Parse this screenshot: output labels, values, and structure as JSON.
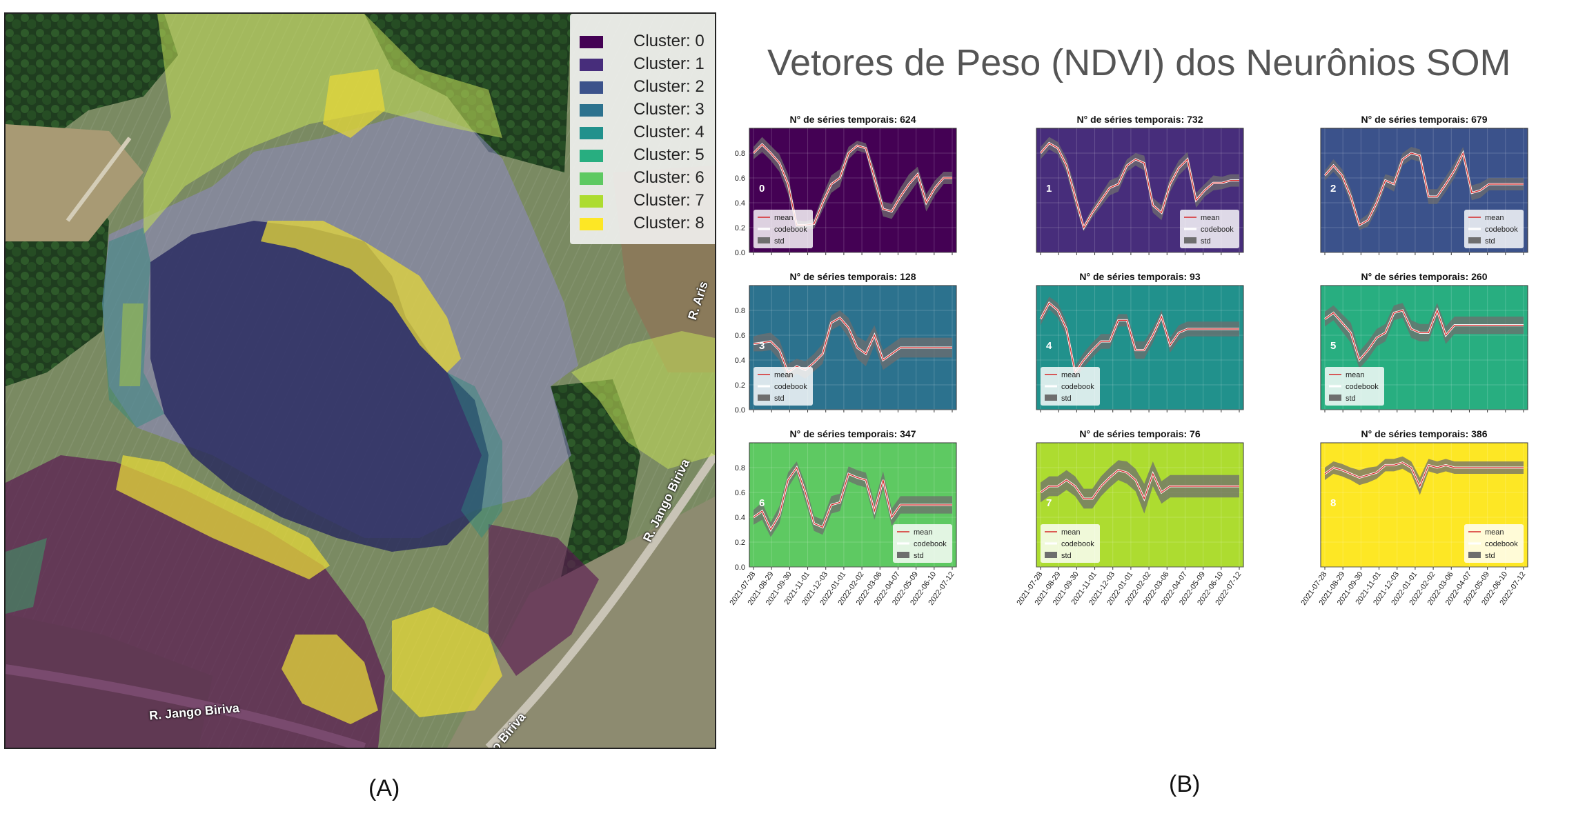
{
  "chart_data": {
    "type": "line",
    "title": "Vetores de Peso (NDVI) dos Neurônios SOM",
    "x": [
      "2021-07-28",
      "2021-08-13",
      "2021-08-29",
      "2021-09-14",
      "2021-09-30",
      "2021-10-16",
      "2021-11-01",
      "2021-11-17",
      "2021-12-03",
      "2021-12-17",
      "2022-01-01",
      "2022-01-17",
      "2022-02-02",
      "2022-02-18",
      "2022-03-06",
      "2022-03-22",
      "2022-04-07",
      "2022-04-23",
      "2022-05-09",
      "2022-05-25",
      "2022-06-10",
      "2022-06-26",
      "2022-07-12",
      "2022-07-28"
    ],
    "xticks": [
      "2021-07-28",
      "2021-08-29",
      "2021-09-30",
      "2021-11-01",
      "2021-12-03",
      "2022-01-01",
      "2022-02-02",
      "2022-03-06",
      "2022-04-07",
      "2022-05-09",
      "2022-06-10",
      "2022-07-12"
    ],
    "yticks": [
      "0.0",
      "0.2",
      "0.4",
      "0.6",
      "0.8"
    ],
    "ylim": [
      0,
      1.0
    ],
    "legend_labels": {
      "mean": "mean",
      "codebook": "codebook",
      "std": "std"
    },
    "subplot_title_prefix": "N° de séries temporais: ",
    "legend_placement": "lower-left or lower-right",
    "panels": [
      {
        "id": "0",
        "count": "624",
        "bg": "#440154",
        "legend_side": "left",
        "mean": [
          0.8,
          0.87,
          0.8,
          0.72,
          0.55,
          0.22,
          0.22,
          0.23,
          0.4,
          0.55,
          0.6,
          0.8,
          0.86,
          0.84,
          0.6,
          0.35,
          0.33,
          0.45,
          0.55,
          0.63,
          0.4,
          0.52,
          0.6,
          0.6
        ],
        "std": [
          0.05,
          0.06,
          0.06,
          0.07,
          0.08,
          0.04,
          0.03,
          0.04,
          0.06,
          0.07,
          0.07,
          0.05,
          0.04,
          0.04,
          0.07,
          0.06,
          0.06,
          0.07,
          0.08,
          0.06,
          0.07,
          0.06,
          0.05,
          0.05
        ]
      },
      {
        "id": "1",
        "count": "732",
        "bg": "#472d7b",
        "legend_side": "right",
        "mean": [
          0.8,
          0.88,
          0.84,
          0.7,
          0.45,
          0.2,
          0.32,
          0.42,
          0.52,
          0.55,
          0.7,
          0.75,
          0.72,
          0.38,
          0.32,
          0.55,
          0.68,
          0.75,
          0.42,
          0.5,
          0.56,
          0.56,
          0.58,
          0.58
        ],
        "std": [
          0.05,
          0.05,
          0.05,
          0.06,
          0.07,
          0.03,
          0.04,
          0.05,
          0.06,
          0.06,
          0.05,
          0.05,
          0.06,
          0.06,
          0.06,
          0.06,
          0.06,
          0.06,
          0.06,
          0.05,
          0.06,
          0.05,
          0.05,
          0.05
        ]
      },
      {
        "id": "2",
        "count": "679",
        "bg": "#3b528b",
        "legend_side": "right",
        "mean": [
          0.62,
          0.7,
          0.62,
          0.45,
          0.22,
          0.26,
          0.4,
          0.58,
          0.55,
          0.75,
          0.8,
          0.78,
          0.45,
          0.45,
          0.55,
          0.66,
          0.8,
          0.48,
          0.5,
          0.55,
          0.55,
          0.55,
          0.55,
          0.55
        ],
        "std": [
          0.04,
          0.05,
          0.05,
          0.06,
          0.04,
          0.05,
          0.06,
          0.05,
          0.06,
          0.05,
          0.05,
          0.05,
          0.06,
          0.06,
          0.06,
          0.06,
          0.05,
          0.06,
          0.06,
          0.05,
          0.05,
          0.05,
          0.05,
          0.05
        ]
      },
      {
        "id": "3",
        "count": "128",
        "bg": "#2c728e",
        "legend_side": "left",
        "mean": [
          0.53,
          0.54,
          0.55,
          0.48,
          0.3,
          0.35,
          0.32,
          0.38,
          0.45,
          0.7,
          0.74,
          0.66,
          0.5,
          0.45,
          0.6,
          0.4,
          0.45,
          0.5,
          0.5,
          0.5,
          0.5,
          0.5,
          0.5,
          0.5
        ],
        "std": [
          0.06,
          0.07,
          0.07,
          0.08,
          0.07,
          0.06,
          0.07,
          0.07,
          0.08,
          0.06,
          0.06,
          0.08,
          0.09,
          0.1,
          0.08,
          0.08,
          0.08,
          0.08,
          0.08,
          0.08,
          0.08,
          0.08,
          0.08,
          0.08
        ]
      },
      {
        "id": "4",
        "count": "93",
        "bg": "#21918c",
        "legend_side": "left",
        "mean": [
          0.73,
          0.86,
          0.8,
          0.65,
          0.3,
          0.4,
          0.48,
          0.55,
          0.55,
          0.72,
          0.72,
          0.48,
          0.48,
          0.6,
          0.75,
          0.52,
          0.62,
          0.65,
          0.65,
          0.65,
          0.65,
          0.65,
          0.65,
          0.65
        ],
        "std": [
          0.05,
          0.05,
          0.06,
          0.06,
          0.05,
          0.06,
          0.06,
          0.06,
          0.06,
          0.05,
          0.05,
          0.07,
          0.07,
          0.06,
          0.05,
          0.06,
          0.06,
          0.06,
          0.06,
          0.06,
          0.06,
          0.06,
          0.06,
          0.06
        ]
      },
      {
        "id": "5",
        "count": "260",
        "bg": "#28ae80",
        "legend_side": "left",
        "mean": [
          0.73,
          0.78,
          0.7,
          0.62,
          0.4,
          0.48,
          0.58,
          0.62,
          0.78,
          0.8,
          0.65,
          0.62,
          0.62,
          0.8,
          0.6,
          0.68,
          0.68,
          0.68,
          0.68,
          0.68,
          0.68,
          0.68,
          0.68,
          0.68
        ],
        "std": [
          0.06,
          0.06,
          0.07,
          0.08,
          0.07,
          0.07,
          0.07,
          0.07,
          0.06,
          0.06,
          0.07,
          0.07,
          0.07,
          0.06,
          0.07,
          0.07,
          0.07,
          0.07,
          0.07,
          0.07,
          0.07,
          0.07,
          0.07,
          0.07
        ]
      },
      {
        "id": "6",
        "count": "347",
        "bg": "#5ec962",
        "legend_side": "right",
        "mean": [
          0.4,
          0.45,
          0.3,
          0.42,
          0.7,
          0.8,
          0.6,
          0.35,
          0.32,
          0.5,
          0.52,
          0.75,
          0.72,
          0.7,
          0.45,
          0.7,
          0.4,
          0.5,
          0.5,
          0.5,
          0.5,
          0.5,
          0.5,
          0.5
        ],
        "std": [
          0.06,
          0.07,
          0.06,
          0.07,
          0.06,
          0.05,
          0.07,
          0.06,
          0.06,
          0.07,
          0.07,
          0.06,
          0.06,
          0.06,
          0.07,
          0.07,
          0.07,
          0.07,
          0.07,
          0.07,
          0.07,
          0.07,
          0.07,
          0.07
        ]
      },
      {
        "id": "7",
        "count": "76",
        "bg": "#addc30",
        "legend_side": "left",
        "mean": [
          0.6,
          0.65,
          0.65,
          0.7,
          0.65,
          0.55,
          0.55,
          0.65,
          0.72,
          0.78,
          0.76,
          0.7,
          0.55,
          0.75,
          0.6,
          0.65,
          0.65,
          0.65,
          0.65,
          0.65,
          0.65,
          0.65,
          0.65,
          0.65
        ],
        "std": [
          0.08,
          0.08,
          0.08,
          0.08,
          0.08,
          0.08,
          0.08,
          0.08,
          0.08,
          0.08,
          0.09,
          0.09,
          0.12,
          0.1,
          0.09,
          0.09,
          0.09,
          0.09,
          0.09,
          0.09,
          0.09,
          0.09,
          0.09,
          0.09
        ]
      },
      {
        "id": "8",
        "count": "386",
        "bg": "#fde725",
        "legend_side": "right",
        "mean": [
          0.75,
          0.8,
          0.78,
          0.75,
          0.72,
          0.74,
          0.76,
          0.82,
          0.82,
          0.84,
          0.8,
          0.65,
          0.82,
          0.8,
          0.82,
          0.8,
          0.8,
          0.8,
          0.8,
          0.8,
          0.8,
          0.8,
          0.8,
          0.8
        ],
        "std": [
          0.05,
          0.05,
          0.05,
          0.05,
          0.06,
          0.06,
          0.05,
          0.05,
          0.05,
          0.05,
          0.05,
          0.07,
          0.05,
          0.05,
          0.05,
          0.05,
          0.05,
          0.05,
          0.05,
          0.05,
          0.05,
          0.05,
          0.05,
          0.05
        ]
      }
    ]
  },
  "map": {
    "legend": [
      {
        "label": "Cluster: 0",
        "color": "#440154"
      },
      {
        "label": "Cluster: 1",
        "color": "#472d7b"
      },
      {
        "label": "Cluster: 2",
        "color": "#3b528b"
      },
      {
        "label": "Cluster: 3",
        "color": "#2c728e"
      },
      {
        "label": "Cluster: 4",
        "color": "#21918c"
      },
      {
        "label": "Cluster: 5",
        "color": "#28ae80"
      },
      {
        "label": "Cluster: 6",
        "color": "#5ec962"
      },
      {
        "label": "Cluster: 7",
        "color": "#addc30"
      },
      {
        "label": "Cluster: 8",
        "color": "#fde725"
      }
    ],
    "streets": [
      "R. Jango Biriva",
      "R. Jango Biriva",
      "o Biriva",
      "R. Aris"
    ]
  },
  "captions": {
    "left": "(A)",
    "right": "(B)"
  }
}
